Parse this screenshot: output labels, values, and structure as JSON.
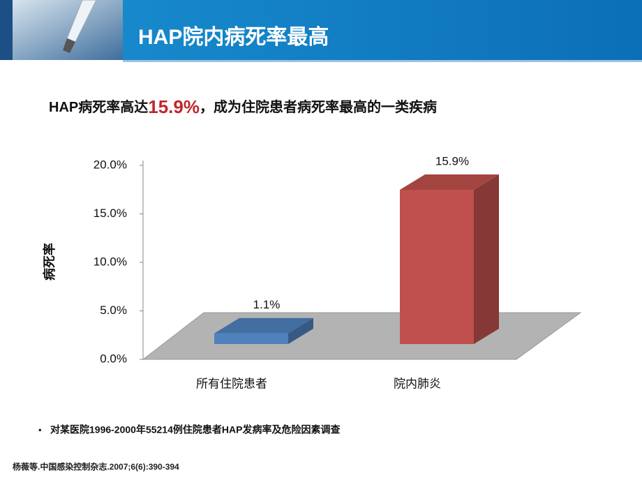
{
  "header": {
    "title": "HAP院内病死率最高"
  },
  "subtitle": {
    "before": "HAP病死率高达",
    "highlight": "15.9%",
    "after": "，成为住院患者病死率最高的一类疾病"
  },
  "chart_data": {
    "type": "bar",
    "ylabel": "病死率",
    "categories": [
      "所有住院患者",
      "院内肺炎"
    ],
    "values": [
      1.1,
      15.9
    ],
    "value_labels": [
      "1.1%",
      "15.9%"
    ],
    "colors": [
      "#4f81bd",
      "#c0504d"
    ],
    "ylim": [
      0,
      20
    ],
    "yticks": [
      {
        "value": 0,
        "label": "0.0%"
      },
      {
        "value": 5,
        "label": "5.0%"
      },
      {
        "value": 10,
        "label": "10.0%"
      },
      {
        "value": 15,
        "label": "15.0%"
      },
      {
        "value": 20,
        "label": "20.0%"
      }
    ],
    "grid": false
  },
  "footnote": "对某医院1996-2000年55214例住院患者HAP发病率及危险因素调查",
  "reference": "杨薇等.中国感染控制杂志.2007;6(6):390-394"
}
